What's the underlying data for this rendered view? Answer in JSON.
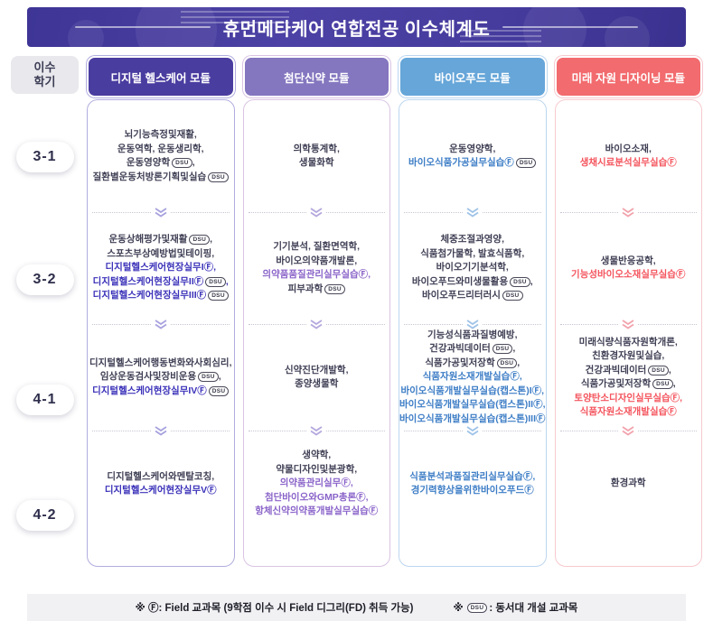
{
  "title": "휴먼메타케어 연합전공 이수체계도",
  "axis": {
    "line1": "이수",
    "line2": "학기"
  },
  "semesters": [
    "3-1",
    "3-2",
    "4-1",
    "4-2"
  ],
  "badges": {
    "f": "Ⓕ",
    "dsu": "DSU"
  },
  "footer": {
    "note1": "※ Ⓕ: Field 교과목 (9학점 이수 시 Field 디그리(FD) 취득 가능)",
    "note2_prefix": "※ ",
    "note2_badge": "DSU",
    "note2_text": ": 동서대 개설 교과목"
  },
  "columns": [
    {
      "id": "digital-healthcare",
      "header": "디지털 헬스케어 모듈",
      "header_bg": "#4a3da0",
      "border": "#b0addf",
      "accent": "#3b32b9",
      "chevron": "#a7a2de",
      "cells": [
        [
          {
            "t": "뇌기능측정및재활,"
          },
          {
            "t": "운동역학, 운동생리학,"
          },
          {
            "t": "운동영양학",
            "dsu": true,
            "tail": ","
          },
          {
            "t": "질환별운동처방론기획및실습",
            "dsu": true
          }
        ],
        [
          {
            "t": "운동상해평가및재활",
            "dsu": true,
            "tail": ","
          },
          {
            "t": "스포츠부상예방법및테이핑,"
          },
          {
            "t": "디지털헬스케어현장실무IⒻ,",
            "accent": true
          },
          {
            "t": "디지털헬스케어현장실무IIⒻ",
            "accent": true,
            "dsu": true,
            "tail": ","
          },
          {
            "t": "디지털헬스케어현장실무IIIⒻ",
            "accent": true,
            "dsu": true
          }
        ],
        [
          {
            "t": "디지털헬스케어행동변화와사회심리,"
          },
          {
            "t": "임상운동검사및장비운용",
            "dsu": true,
            "tail": ","
          },
          {
            "t": "디지털헬스케어현장실무IVⒻ",
            "accent": true,
            "dsu": true
          }
        ],
        [
          {
            "t": "디지털헬스케어와멘탈코칭,"
          },
          {
            "t": "디지털헬스케어현장실무VⒻ",
            "accent": true
          }
        ]
      ]
    },
    {
      "id": "advanced-drug",
      "header": "첨단신약 모듈",
      "header_bg": "#8476bf",
      "border": "#d9c4e3",
      "accent": "#8a63c9",
      "chevron": "#b5a8dd",
      "cells": [
        [
          {
            "t": "의학통계학,"
          },
          {
            "t": "생물화학"
          }
        ],
        [
          {
            "t": "기기분석, 질환면역학,"
          },
          {
            "t": "바이오의약품개발론,"
          },
          {
            "t": "의약품품질관리실무실습Ⓕ,",
            "accent": true
          },
          {
            "t": "피부과학",
            "dsu": true
          }
        ],
        [
          {
            "t": "신약진단개발학,"
          },
          {
            "t": "종양생물학"
          }
        ],
        [
          {
            "t": "생약학,"
          },
          {
            "t": "약물디자인및분광학,"
          },
          {
            "t": "의약품관리실무Ⓕ,",
            "accent": true
          },
          {
            "t": "첨단바이오와GMP총론Ⓕ,",
            "accent": true
          },
          {
            "t": "항체신약의약품개발실무실습Ⓕ",
            "accent": true
          }
        ]
      ]
    },
    {
      "id": "bio-food",
      "header": "바이오푸드 모듈",
      "header_bg": "#66a6d9",
      "border": "#bcd6ef",
      "accent": "#3d7dc6",
      "chevron": "#9fc3e8",
      "cells": [
        [
          {
            "t": "운동영양학,"
          },
          {
            "t": "바이오식품가공실무실습Ⓕ",
            "accent": true,
            "dsu": true
          }
        ],
        [
          {
            "t": "체중조절과영양,"
          },
          {
            "t": "식품첨가물학, 발효식품학,"
          },
          {
            "t": "바이오기기분석학,"
          },
          {
            "t": "바이오푸드와미생물활용",
            "dsu": true,
            "tail": ","
          },
          {
            "t": "바이오푸드리터러시",
            "dsu": true
          }
        ],
        [
          {
            "t": "기능성식품과질병예방,"
          },
          {
            "t": "건강과빅데이터",
            "dsu": true,
            "tail": ","
          },
          {
            "t": "식품가공및저장학",
            "dsu": true,
            "tail": ","
          },
          {
            "t": "식품자원소재개발실습Ⓕ,",
            "accent": true
          },
          {
            "t": "바이오식품개발실무실습(캡스톤)IⒻ,",
            "accent": true
          },
          {
            "t": "바이오식품개발실무실습(캡스톤)IIⒻ,",
            "accent": true
          },
          {
            "t": "바이오식품개발실무실습(캡스톤)IIIⒻ",
            "accent": true
          }
        ],
        [
          {
            "t": "식품분석과품질관리실무실습Ⓕ,",
            "accent": true
          },
          {
            "t": "경기력향상을위한바이오푸드Ⓕ",
            "accent": true
          }
        ]
      ]
    },
    {
      "id": "future-resource-design",
      "header": "미래 자원 디자이닝 모듈",
      "header_bg": "#f26b6e",
      "border": "#f7c9ce",
      "accent": "#f4555e",
      "chevron": "#f2a3ad",
      "cells": [
        [
          {
            "t": "바이오소재,"
          },
          {
            "t": "생채시료분석실무실습Ⓕ",
            "accent": true
          }
        ],
        [
          {
            "t": "생물반응공학,"
          },
          {
            "t": "기능성바이오소재실무실습Ⓕ",
            "accent": true
          }
        ],
        [
          {
            "t": "미래식량식품자원학개론,"
          },
          {
            "t": "친환경자원및실습,"
          },
          {
            "t": "건강과빅데이터",
            "dsu": true,
            "tail": ","
          },
          {
            "t": "식품가공및저장학",
            "dsu": true,
            "tail": ","
          },
          {
            "t": "토양탄소디자인실무실습Ⓕ,",
            "accent": true
          },
          {
            "t": "식품자원소재개발실습Ⓕ",
            "accent": true
          }
        ],
        [
          {
            "t": "환경과학"
          }
        ]
      ]
    }
  ]
}
